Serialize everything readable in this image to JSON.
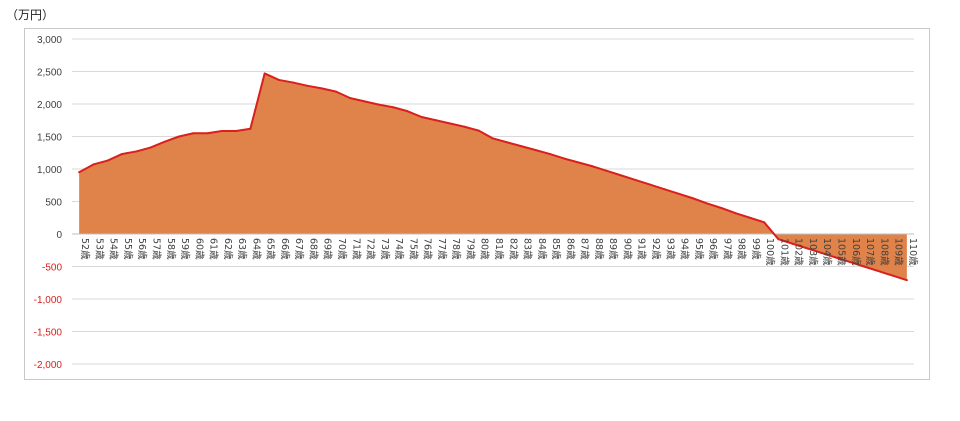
{
  "unit_label": "（万円）",
  "colors": {
    "area_fill": "#e0834a",
    "line": "#d9201c",
    "negative_tick": "#d9201c",
    "grid": "#d9d9d9",
    "axis_text": "#404040"
  },
  "chart_data": {
    "type": "area",
    "x": [
      "52歳",
      "53歳",
      "54歳",
      "55歳",
      "56歳",
      "57歳",
      "58歳",
      "59歳",
      "60歳",
      "61歳",
      "62歳",
      "63歳",
      "64歳",
      "65歳",
      "66歳",
      "67歳",
      "68歳",
      "69歳",
      "70歳",
      "71歳",
      "72歳",
      "73歳",
      "74歳",
      "75歳",
      "76歳",
      "77歳",
      "78歳",
      "79歳",
      "80歳",
      "81歳",
      "82歳",
      "83歳",
      "84歳",
      "85歳",
      "86歳",
      "87歳",
      "88歳",
      "89歳",
      "90歳",
      "91歳",
      "92歳",
      "93歳",
      "94歳",
      "95歳",
      "96歳",
      "97歳",
      "98歳",
      "99歳",
      "100歳",
      "101歳",
      "102歳",
      "103歳",
      "104歳",
      "105歳",
      "106歳",
      "107歳",
      "108歳",
      "109歳",
      "110歳"
    ],
    "values": [
      950,
      1070,
      1130,
      1230,
      1270,
      1330,
      1420,
      1500,
      1550,
      1550,
      1585,
      1585,
      1620,
      2470,
      2370,
      2330,
      2280,
      2240,
      2190,
      2090,
      2040,
      1990,
      1950,
      1890,
      1800,
      1750,
      1700,
      1650,
      1590,
      1470,
      1410,
      1350,
      1290,
      1230,
      1160,
      1100,
      1040,
      970,
      900,
      830,
      760,
      690,
      620,
      550,
      470,
      400,
      320,
      250,
      180,
      -80,
      -150,
      -220,
      -290,
      -360,
      -430,
      -500,
      -570,
      -640,
      -710
    ],
    "y_ticks": [
      "3,000",
      "2,500",
      "2,000",
      "1,500",
      "1,000",
      "500",
      "0",
      "-500",
      "-1,000",
      "-1,500",
      "-2,000"
    ],
    "ylim": [
      -2000,
      3000
    ],
    "grid": true
  }
}
